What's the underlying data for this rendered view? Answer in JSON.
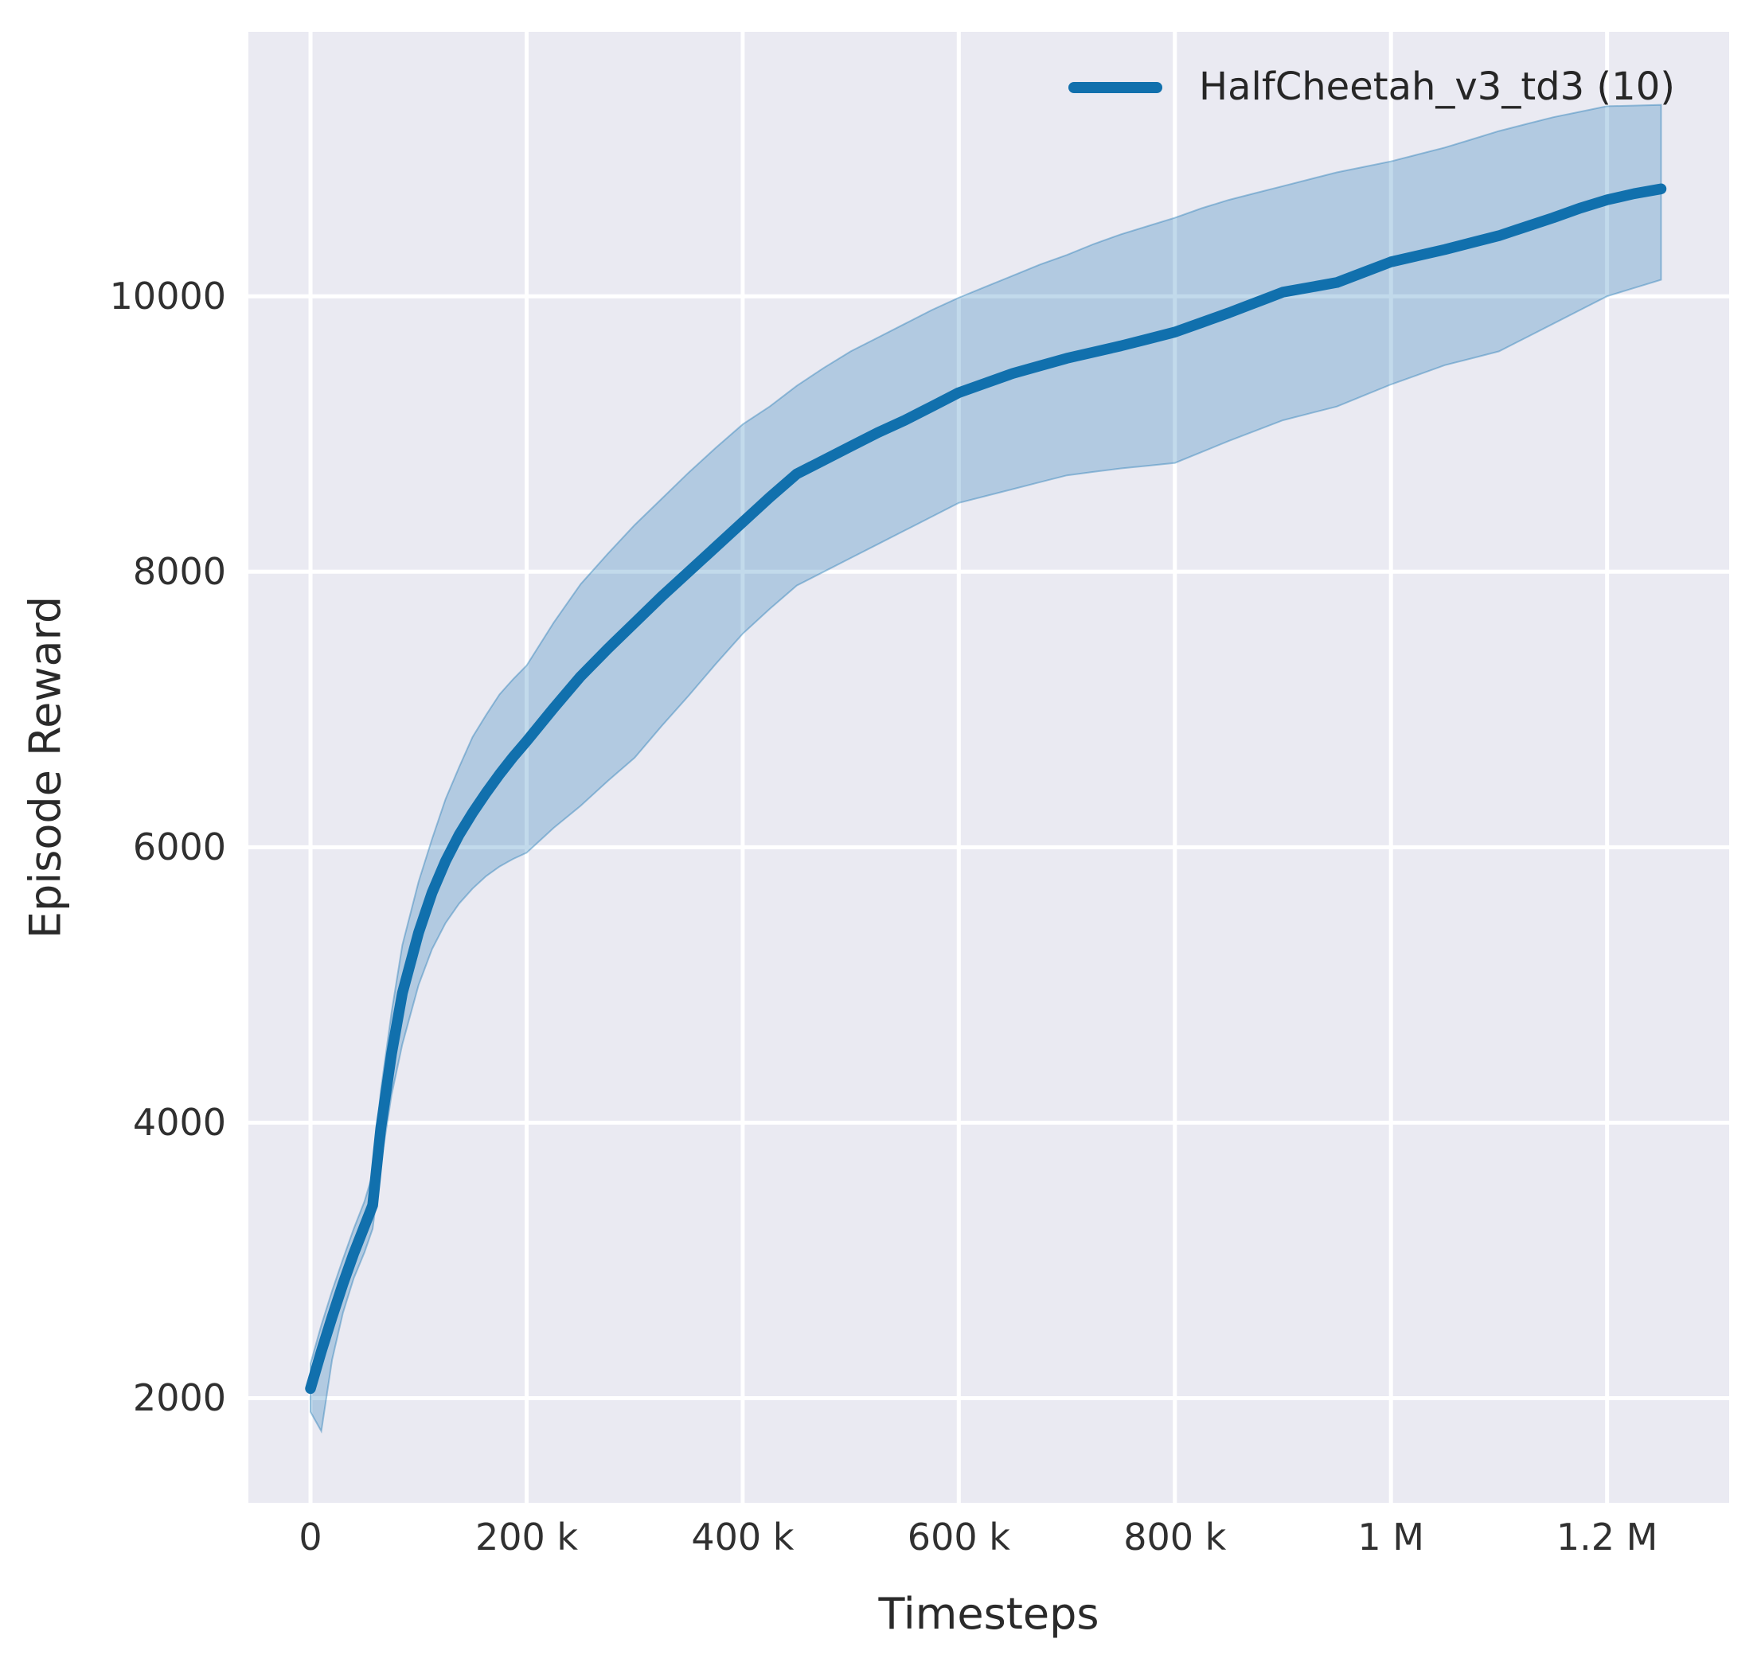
{
  "figure": {
    "background": "#ffffff",
    "plot_background": "#eaeaf2",
    "grid_color": "#ffffff",
    "tick_color": "#303030",
    "label_color": "#2a2a2a"
  },
  "legend": {
    "label": "HalfCheetah_v3_td3 (10)",
    "position": "upper right",
    "swatch_color": "#1170ad"
  },
  "chart_data": {
    "type": "line",
    "title": "",
    "xlabel": "Timesteps",
    "ylabel": "Episode Reward",
    "grid": true,
    "legend_position": "upper right",
    "xlim": [
      -57500,
      1313000
    ],
    "ylim": [
      1240,
      11920
    ],
    "x_ticks": [
      {
        "value": 0,
        "label": "0"
      },
      {
        "value": 200000,
        "label": "200 k"
      },
      {
        "value": 400000,
        "label": "400 k"
      },
      {
        "value": 600000,
        "label": "600 k"
      },
      {
        "value": 800000,
        "label": "800 k"
      },
      {
        "value": 1000000,
        "label": "1 M"
      },
      {
        "value": 1200000,
        "label": "1.2 M"
      }
    ],
    "y_ticks": [
      {
        "value": 2000,
        "label": "2000"
      },
      {
        "value": 4000,
        "label": "4000"
      },
      {
        "value": 6000,
        "label": "6000"
      },
      {
        "value": 8000,
        "label": "8000"
      },
      {
        "value": 10000,
        "label": "10000"
      }
    ],
    "series": [
      {
        "name": "HalfCheetah_v3_td3 (10)",
        "color": "#1170ad",
        "line_width": 13.5,
        "band_fill": "rgba(31,119,180,0.27)",
        "band_edge": "rgba(31,119,180,0.40)",
        "x": [
          0,
          10000,
          20000,
          30000,
          40000,
          50000,
          57500,
          65000,
          75000,
          85000,
          100000,
          112500,
          125000,
          137500,
          150000,
          162500,
          175000,
          187500,
          200000,
          225000,
          250000,
          275000,
          300000,
          325000,
          350000,
          375000,
          400000,
          425000,
          450000,
          475000,
          500000,
          525000,
          550000,
          575000,
          600000,
          625000,
          650000,
          675000,
          700000,
          725000,
          750000,
          775000,
          800000,
          825000,
          850000,
          875000,
          900000,
          925000,
          950000,
          975000,
          1000000,
          1025000,
          1050000,
          1075000,
          1100000,
          1125000,
          1150000,
          1175000,
          1200000,
          1225000,
          1250000
        ],
        "y": [
          2070,
          2340,
          2590,
          2830,
          3050,
          3250,
          3400,
          3960,
          4500,
          4940,
          5380,
          5670,
          5900,
          6090,
          6250,
          6395,
          6530,
          6655,
          6770,
          7010,
          7240,
          7440,
          7630,
          7820,
          8000,
          8180,
          8360,
          8540,
          8710,
          8810,
          8910,
          9010,
          9100,
          9200,
          9300,
          9370,
          9440,
          9495,
          9550,
          9595,
          9640,
          9690,
          9740,
          9810,
          9880,
          9955,
          10030,
          10065,
          10100,
          10175,
          10250,
          10295,
          10340,
          10390,
          10440,
          10505,
          10570,
          10640,
          10700,
          10745,
          10780
        ],
        "band_low": [
          1900,
          1760,
          2280,
          2620,
          2870,
          3060,
          3230,
          3700,
          4200,
          4570,
          5000,
          5260,
          5450,
          5590,
          5700,
          5790,
          5860,
          5915,
          5960,
          6140,
          6300,
          6480,
          6650,
          6880,
          7100,
          7330,
          7550,
          7730,
          7900,
          8000,
          8100,
          8200,
          8300,
          8400,
          8500,
          8550,
          8600,
          8650,
          8700,
          8725,
          8750,
          8770,
          8790,
          8870,
          8950,
          9025,
          9100,
          9150,
          9200,
          9280,
          9360,
          9430,
          9500,
          9550,
          9600,
          9700,
          9800,
          9900,
          10000,
          10060,
          10120
        ],
        "band_high": [
          2250,
          2530,
          2780,
          3010,
          3230,
          3430,
          3630,
          4230,
          4800,
          5290,
          5750,
          6060,
          6350,
          6580,
          6800,
          6960,
          7110,
          7220,
          7320,
          7630,
          7910,
          8130,
          8340,
          8530,
          8720,
          8900,
          9070,
          9200,
          9350,
          9480,
          9600,
          9700,
          9800,
          9900,
          9990,
          10070,
          10150,
          10230,
          10300,
          10380,
          10450,
          10510,
          10570,
          10640,
          10700,
          10750,
          10800,
          10850,
          10900,
          10940,
          10980,
          11030,
          11080,
          11140,
          11200,
          11250,
          11300,
          11340,
          11380,
          11385,
          11390
        ]
      }
    ]
  }
}
